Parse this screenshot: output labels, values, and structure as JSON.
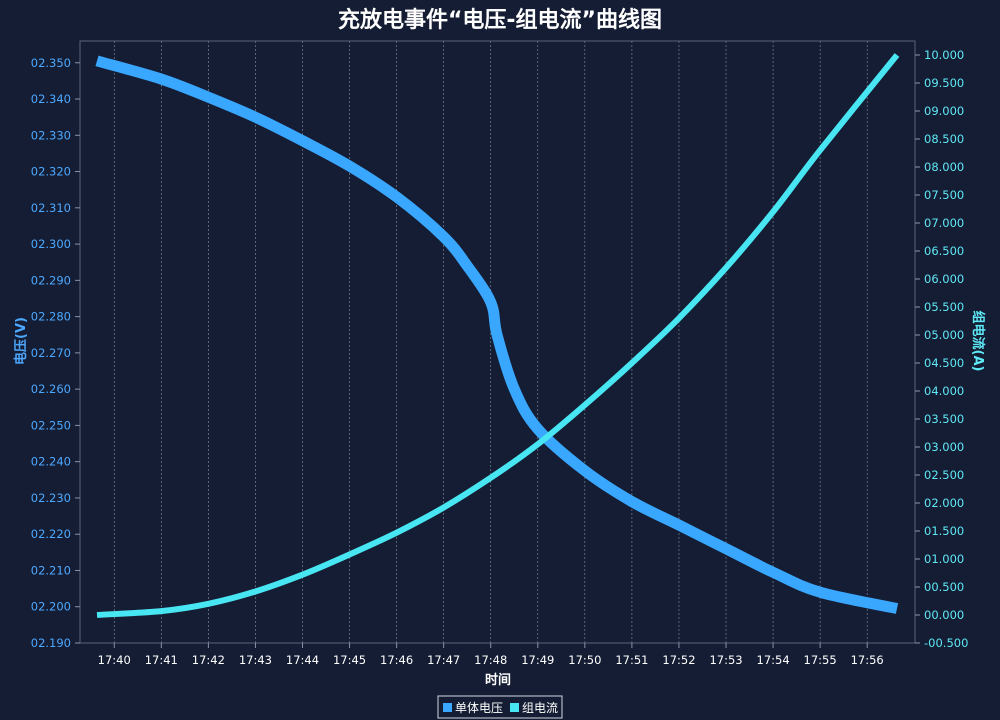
{
  "chart_data": {
    "type": "line",
    "title": "充放电事件“电压-组电流”曲线图",
    "xlabel": "时间",
    "categories": [
      "17:40",
      "17:41",
      "17:42",
      "17:43",
      "17:44",
      "17:45",
      "17:46",
      "17:47",
      "17:48",
      "17:49",
      "17:50",
      "17:51",
      "17:52",
      "17:53",
      "17:54",
      "17:55",
      "17:56"
    ],
    "x_range": [
      "17:39:38",
      "17:56:38"
    ],
    "y_left": {
      "label": "电压(V)",
      "range": [
        2.19,
        2.356
      ],
      "ticks": [
        "02.190",
        "02.200",
        "02.210",
        "02.220",
        "02.230",
        "02.240",
        "02.250",
        "02.260",
        "02.270",
        "02.280",
        "02.290",
        "02.300",
        "02.310",
        "02.320",
        "02.330",
        "02.340",
        "02.350"
      ],
      "color": "#3aa7ff"
    },
    "y_right": {
      "label": "组电流(A)",
      "range": [
        -0.5,
        10.25
      ],
      "ticks": [
        "-00.500",
        "00.000",
        "00.500",
        "01.000",
        "01.500",
        "02.000",
        "02.500",
        "03.000",
        "03.500",
        "04.000",
        "04.500",
        "05.000",
        "05.500",
        "06.000",
        "06.500",
        "07.000",
        "07.500",
        "08.000",
        "08.500",
        "09.000",
        "09.500",
        "10.000"
      ],
      "color": "#48e6f2"
    },
    "series": [
      {
        "name": "单体电压",
        "axis": "left",
        "color": "#3aa7ff",
        "x": [
          "17:39:38",
          "17:41",
          "17:42",
          "17:43",
          "17:44",
          "17:45",
          "17:46",
          "17:47",
          "17:47:30",
          "17:48",
          "17:48:08",
          "17:48:30",
          "17:49",
          "17:50",
          "17:51",
          "17:52",
          "17:53",
          "17:54",
          "17:55",
          "17:56:38"
        ],
        "y": [
          2.3505,
          2.3455,
          2.3405,
          2.335,
          2.3285,
          2.3215,
          2.313,
          2.302,
          2.294,
          2.284,
          2.275,
          2.26,
          2.249,
          2.2375,
          2.229,
          2.2225,
          2.216,
          2.2095,
          2.204,
          2.1995
        ]
      },
      {
        "name": "组电流",
        "axis": "right",
        "color": "#48e6f2",
        "x": [
          "17:39:38",
          "17:41",
          "17:42",
          "17:43",
          "17:44",
          "17:45",
          "17:46",
          "17:47",
          "17:48",
          "17:49",
          "17:50",
          "17:51",
          "17:52",
          "17:53",
          "17:54",
          "17:55",
          "17:56:38"
        ],
        "y": [
          0.0,
          0.07,
          0.2,
          0.42,
          0.72,
          1.08,
          1.47,
          1.92,
          2.45,
          3.05,
          3.75,
          4.5,
          5.3,
          6.2,
          7.2,
          8.3,
          10.0
        ]
      }
    ],
    "legend": {
      "position": "bottom-center",
      "entries": [
        "单体电压",
        "组电流"
      ]
    },
    "grid": {
      "vertical": true,
      "horizontal": false
    }
  }
}
